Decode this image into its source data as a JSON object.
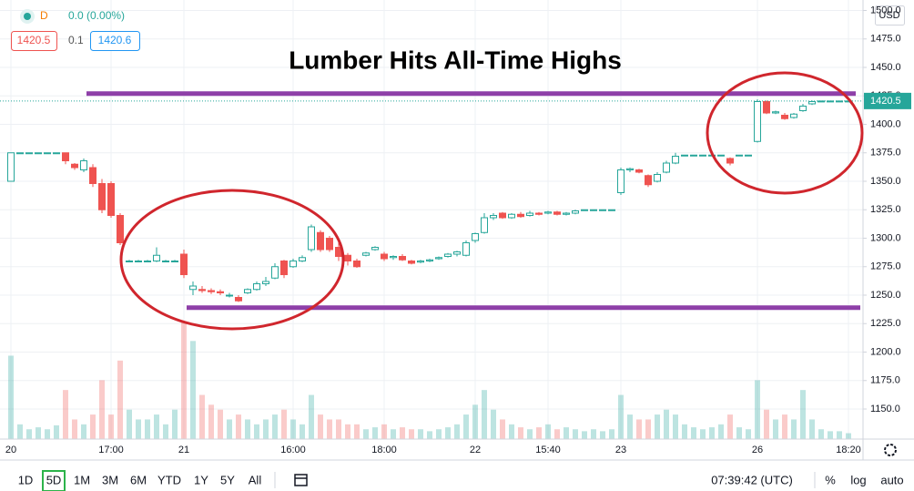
{
  "header": {
    "legend_label": "D",
    "change": "0.0 (0.00%)",
    "bid": "1420.5",
    "spread": "0.1",
    "ask": "1420.6",
    "currency": "USD"
  },
  "chart_data": {
    "type": "candlestick",
    "title": "Lumber Hits All-Time Highs",
    "categories": [
      "20",
      null,
      null,
      null,
      null,
      null,
      null,
      null,
      null,
      null,
      null,
      "17:00",
      null,
      null,
      null,
      null,
      null,
      null,
      null,
      "21",
      null,
      null,
      null,
      null,
      null,
      null,
      null,
      null,
      null,
      null,
      null,
      "16:00",
      null,
      null,
      null,
      null,
      null,
      null,
      null,
      null,
      null,
      "18:00",
      null,
      null,
      null,
      null,
      null,
      null,
      null,
      null,
      null,
      "22",
      null,
      null,
      null,
      null,
      null,
      null,
      null,
      "15:40",
      null,
      null,
      null,
      null,
      null,
      null,
      null,
      "23",
      null,
      null,
      null,
      null,
      null,
      null,
      null,
      null,
      null,
      null,
      null,
      null,
      null,
      null,
      "26",
      null,
      null,
      null,
      null,
      null,
      null,
      null,
      null,
      null,
      "18:20"
    ],
    "open": [
      1350,
      1375,
      1375,
      1375,
      1375,
      1375,
      1375,
      1365,
      1360,
      1362,
      1348,
      1348,
      1320,
      1280,
      1280,
      1280,
      1280,
      1280,
      1280,
      1286,
      1255,
      1255,
      1254,
      1253,
      1250,
      1248,
      1252,
      1255,
      1260,
      1265,
      1280,
      1275,
      1280,
      1290,
      1305,
      1300,
      1292,
      1285,
      1280,
      1285,
      1290,
      1286,
      1283,
      1284,
      1280,
      1279,
      1280,
      1282,
      1284,
      1286,
      1285,
      1298,
      1305,
      1318,
      1322,
      1318,
      1321,
      1320,
      1322,
      1322,
      1323,
      1321,
      1322,
      1325,
      1325,
      1325,
      1325,
      1340,
      1360,
      1360,
      1355,
      1350,
      1358,
      1366,
      1373,
      1373,
      1373,
      1373,
      1373,
      1370,
      1373,
      1373,
      1385,
      1420,
      1410,
      1408,
      1406,
      1412,
      1418,
      1420.5,
      1420.5,
      1420.5,
      1420.5
    ],
    "high": [
      1375,
      1375,
      1375,
      1375,
      1375,
      1375,
      1375,
      1366,
      1370,
      1365,
      1352,
      1350,
      1322,
      1281,
      1281,
      1281,
      1292,
      1281,
      1281,
      1290,
      1262,
      1258,
      1256,
      1255,
      1252,
      1250,
      1256,
      1262,
      1266,
      1278,
      1281,
      1282,
      1285,
      1312,
      1307,
      1302,
      1296,
      1287,
      1282,
      1288,
      1293,
      1288,
      1285,
      1286,
      1281,
      1281,
      1282,
      1284,
      1287,
      1289,
      1298,
      1305,
      1322,
      1322,
      1323,
      1322,
      1323,
      1324,
      1323,
      1324,
      1324,
      1323,
      1325,
      1325,
      1325,
      1325,
      1325,
      1362,
      1362,
      1361,
      1356,
      1358,
      1368,
      1375,
      1373,
      1373,
      1373,
      1373,
      1373,
      1371,
      1373,
      1373,
      1422,
      1421,
      1412,
      1410,
      1410,
      1418,
      1421,
      1420.5,
      1420.5,
      1420.5,
      1420.5
    ],
    "low": [
      1350,
      1375,
      1375,
      1375,
      1375,
      1375,
      1365,
      1360,
      1358,
      1345,
      1322,
      1318,
      1294,
      1279,
      1279,
      1279,
      1279,
      1279,
      1279,
      1265,
      1250,
      1252,
      1251,
      1250,
      1248,
      1244,
      1251,
      1254,
      1258,
      1264,
      1265,
      1274,
      1279,
      1288,
      1288,
      1288,
      1280,
      1276,
      1274,
      1284,
      1289,
      1280,
      1281,
      1280,
      1277,
      1278,
      1279,
      1281,
      1283,
      1284,
      1284,
      1296,
      1304,
      1316,
      1317,
      1317,
      1318,
      1319,
      1320,
      1321,
      1320,
      1320,
      1321,
      1325,
      1325,
      1325,
      1325,
      1338,
      1358,
      1357,
      1345,
      1349,
      1357,
      1365,
      1373,
      1373,
      1373,
      1373,
      1373,
      1364,
      1373,
      1373,
      1384,
      1409,
      1409,
      1404,
      1405,
      1411,
      1417,
      1420.5,
      1420.5,
      1420.5,
      1420.5
    ],
    "close": [
      1375,
      1375,
      1375,
      1375,
      1375,
      1375,
      1368,
      1362,
      1368,
      1348,
      1325,
      1320,
      1296,
      1280,
      1280,
      1280,
      1285,
      1280,
      1280,
      1268,
      1258,
      1254,
      1253,
      1252,
      1250,
      1245,
      1255,
      1260,
      1262,
      1275,
      1268,
      1280,
      1283,
      1310,
      1290,
      1290,
      1284,
      1280,
      1275,
      1287,
      1292,
      1282,
      1284,
      1281,
      1278,
      1280,
      1281,
      1283,
      1286,
      1288,
      1296,
      1304,
      1318,
      1320,
      1318,
      1321,
      1319,
      1322,
      1321,
      1323,
      1321,
      1322,
      1324,
      1325,
      1325,
      1325,
      1325,
      1360,
      1361,
      1358,
      1347,
      1356,
      1366,
      1372,
      1373,
      1373,
      1373,
      1373,
      1373,
      1366,
      1373,
      1373,
      1420,
      1410,
      1411,
      1405,
      1409,
      1416,
      1420,
      1420.5,
      1420.5,
      1420.5,
      1420.5
    ],
    "volume": [
      85,
      15,
      10,
      12,
      10,
      14,
      50,
      20,
      15,
      25,
      60,
      25,
      80,
      30,
      20,
      20,
      25,
      15,
      30,
      120,
      100,
      45,
      35,
      30,
      20,
      25,
      20,
      15,
      20,
      25,
      30,
      20,
      15,
      45,
      25,
      20,
      20,
      15,
      15,
      10,
      12,
      15,
      10,
      12,
      10,
      10,
      8,
      10,
      12,
      15,
      25,
      35,
      50,
      30,
      20,
      15,
      12,
      10,
      12,
      15,
      10,
      12,
      10,
      8,
      10,
      8,
      10,
      45,
      25,
      20,
      20,
      25,
      30,
      25,
      15,
      12,
      10,
      12,
      15,
      25,
      12,
      10,
      60,
      30,
      20,
      25,
      20,
      50,
      20,
      10,
      8,
      8,
      6
    ],
    "volume_lim": [
      0,
      130
    ],
    "ylim": [
      1123.6,
      1509.2
    ],
    "yticks": [
      {
        "value": 1150,
        "label": "1150.0"
      },
      {
        "value": 1175,
        "label": "1175.0"
      },
      {
        "value": 1200,
        "label": "1200.0"
      },
      {
        "value": 1225,
        "label": "1225.0"
      },
      {
        "value": 1250,
        "label": "1250.0"
      },
      {
        "value": 1275,
        "label": "1275.0"
      },
      {
        "value": 1300,
        "label": "1300.0"
      },
      {
        "value": 1325,
        "label": "1325.0"
      },
      {
        "value": 1350,
        "label": "1350.0"
      },
      {
        "value": 1375,
        "label": "1375.0"
      },
      {
        "value": 1400,
        "label": "1400.0"
      },
      {
        "value": 1425,
        "label": "1425.0"
      },
      {
        "value": 1450,
        "label": "1450.0"
      },
      {
        "value": 1475,
        "label": "1475.0"
      },
      {
        "value": 1500,
        "label": "1500.0"
      }
    ],
    "last_price": {
      "value": 1420.5,
      "label": "1420.5"
    },
    "levels": [
      1427,
      1239
    ],
    "level_color": "#8e3fa8",
    "up_color": "#26a69a",
    "down_color": "#ef5350",
    "grid": true
  },
  "toolbar": {
    "ranges": [
      "1D",
      "5D",
      "1M",
      "3M",
      "6M",
      "YTD",
      "1Y",
      "5Y",
      "All"
    ],
    "time": "07:39:42 (UTC)",
    "percent": "%",
    "log": "log",
    "auto": "auto"
  }
}
